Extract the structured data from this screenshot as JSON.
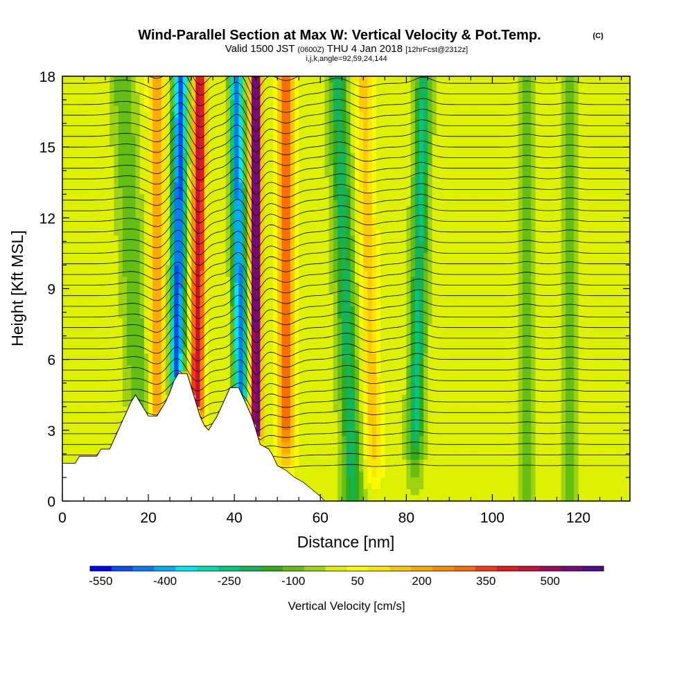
{
  "header": {
    "title": "Wind-Parallel Section at Max W: Vertical Velocity & Pot.Temp.",
    "title_mark": "(C)",
    "valid_prefix": "Valid 1500 JST",
    "valid_zulu": "(0600Z)",
    "valid_day": "THU 4 Jan 2018",
    "valid_fcst": "[12hrFcst@2312z]",
    "indices": "i,j,k,angle=92,59,24,144"
  },
  "chart_data": {
    "type": "heatmap",
    "title": "Wind-Parallel Section at Max W: Vertical Velocity & Pot.Temp.",
    "xlabel": "Distance [nm]",
    "ylabel": "Height [Kft MSL]",
    "xlim": [
      0,
      132
    ],
    "ylim": [
      0,
      18
    ],
    "x_ticks": [
      "0",
      "20",
      "40",
      "60",
      "80",
      "100",
      "120"
    ],
    "y_ticks": [
      "0",
      "3",
      "6",
      "9",
      "12",
      "15",
      "18"
    ],
    "colorbar": {
      "label": "Vertical Velocity [cm/s]",
      "tick_labels": [
        "-550",
        "-400",
        "-250",
        "-100",
        "50",
        "200",
        "350",
        "500"
      ],
      "colors": [
        "#0000f0",
        "#0a4ef2",
        "#0a7cf2",
        "#00aef0",
        "#00e6f0",
        "#00dcb4",
        "#00c882",
        "#14b45a",
        "#32aa1e",
        "#64be14",
        "#a0d214",
        "#dcf000",
        "#fafa00",
        "#fae600",
        "#fac800",
        "#faaa00",
        "#fa8c00",
        "#fa6e00",
        "#f03c14",
        "#dc1e1e",
        "#c8103c",
        "#a00a5a",
        "#780a78",
        "#500a8c"
      ]
    },
    "updraft_peaks_nm": [
      22,
      32,
      45,
      52
    ],
    "downdraft_peaks_nm": [
      28,
      40,
      64,
      84
    ],
    "terrain_heights_kft": [
      [
        0,
        1.6
      ],
      [
        3,
        1.6
      ],
      [
        4,
        1.9
      ],
      [
        8,
        1.9
      ],
      [
        9,
        2.2
      ],
      [
        11,
        2.2
      ],
      [
        12,
        2.6
      ],
      [
        13,
        3.0
      ],
      [
        14,
        3.4
      ],
      [
        15,
        3.8
      ],
      [
        16,
        4.2
      ],
      [
        17,
        4.5
      ],
      [
        18,
        4.2
      ],
      [
        19,
        3.9
      ],
      [
        20,
        3.6
      ],
      [
        22,
        3.6
      ],
      [
        23,
        3.9
      ],
      [
        24,
        4.2
      ],
      [
        25,
        4.6
      ],
      [
        26,
        5.1
      ],
      [
        27,
        5.4
      ],
      [
        29,
        5.4
      ],
      [
        30,
        4.8
      ],
      [
        31,
        4.2
      ],
      [
        32,
        3.6
      ],
      [
        33,
        3.2
      ],
      [
        34,
        3.0
      ],
      [
        35,
        3.3
      ],
      [
        36,
        3.6
      ],
      [
        37,
        4.0
      ],
      [
        38,
        4.4
      ],
      [
        39,
        4.8
      ],
      [
        41,
        4.8
      ],
      [
        42,
        4.4
      ],
      [
        43,
        4.0
      ],
      [
        44,
        3.6
      ],
      [
        45,
        3.0
      ],
      [
        46,
        2.4
      ],
      [
        47,
        2.3
      ],
      [
        48,
        2.2
      ],
      [
        49,
        1.9
      ],
      [
        50,
        1.5
      ],
      [
        52,
        1.3
      ],
      [
        54,
        1.0
      ],
      [
        56,
        0.8
      ],
      [
        58,
        0.5
      ],
      [
        60,
        0.2
      ],
      [
        61,
        0
      ]
    ],
    "grid": false,
    "contour_field": "Potential Temperature"
  }
}
